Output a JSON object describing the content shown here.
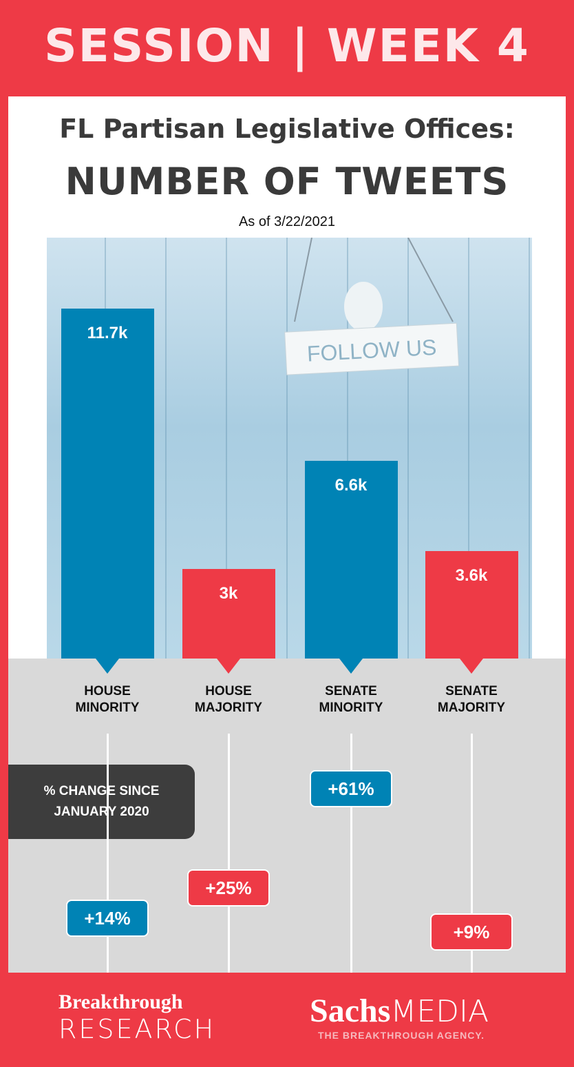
{
  "header": {
    "title": "SESSION | WEEK 4",
    "subtitle": "FL Partisan Legislative Offices:",
    "heading": "NUMBER OF TWEETS",
    "date": "As of 3/22/2021"
  },
  "image_sign": "FOLLOW US",
  "chart_data": [
    {
      "type": "bar",
      "categories": [
        "HOUSE MINORITY",
        "HOUSE MAJORITY",
        "SENATE MINORITY",
        "SENATE MAJORITY"
      ],
      "values": [
        11700,
        3000,
        6600,
        3600
      ],
      "value_labels": [
        "11.7k",
        "3k",
        "6.6k",
        "3.6k"
      ],
      "colors": [
        "#0083b5",
        "#ee3a46",
        "#0083b5",
        "#ee3a46"
      ]
    },
    {
      "type": "dot",
      "title": "% CHANGE SINCE JANUARY 2020",
      "values": [
        14,
        25,
        61,
        9
      ],
      "value_labels": [
        "+14%",
        "+25%",
        "+61%",
        "+9%"
      ],
      "colors": [
        "#0083b5",
        "#ee3a46",
        "#0083b5",
        "#ee3a46"
      ]
    }
  ],
  "footer": {
    "left": [
      "Breakthrough",
      "RESEARCH"
    ],
    "brand": "Sachs",
    "brand2": "MEDIA",
    "tagline": "THE BREAKTHROUGH AGENCY."
  }
}
